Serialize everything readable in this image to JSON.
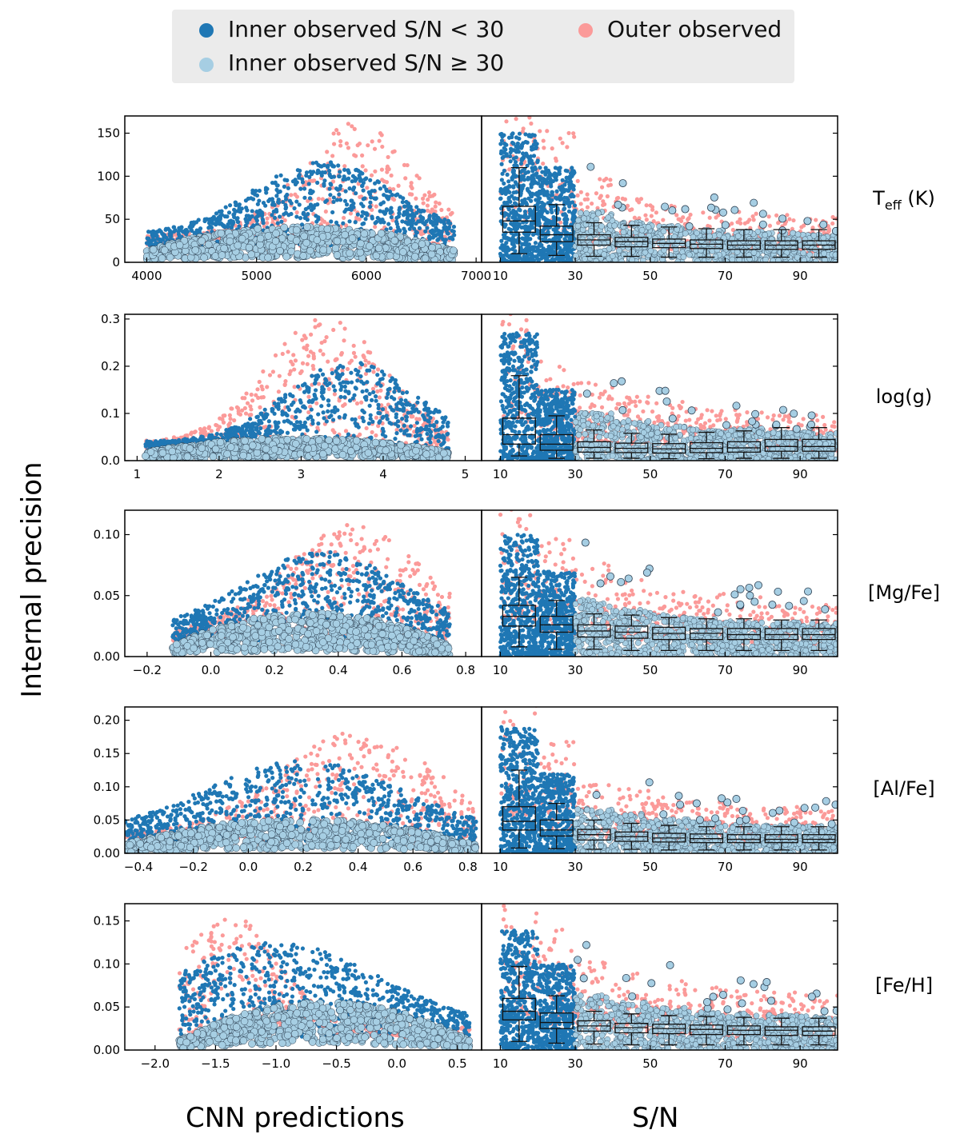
{
  "legend": {
    "items": [
      {
        "label": "Inner observed S/N < 30",
        "color": "#1f77b4"
      },
      {
        "label": "Inner observed S/N ≥ 30",
        "color": "#a6cee3"
      },
      {
        "label": "Outer observed",
        "color": "#fb9a99"
      }
    ]
  },
  "labels": {
    "ylabel": "Internal precision",
    "xlabel_left": "CNN predictions",
    "xlabel_right": "S/N"
  },
  "colors": {
    "inner_low": "#1f77b4",
    "inner_high": "#a6cee3",
    "outer": "#fb9a99"
  },
  "chart_data": [
    {
      "type": "scatter",
      "row_label": "T_eff (K)",
      "row_label_main": "T",
      "row_label_sub": "eff",
      "row_label_tail": " (K)",
      "ylim": [
        0,
        170
      ],
      "yticks": [
        0,
        50,
        100,
        150
      ],
      "ytick_labels": [
        "0",
        "50",
        "100",
        "150"
      ],
      "left": {
        "xlim": [
          3800,
          7050
        ],
        "xticks": [
          4000,
          5000,
          6000,
          7000
        ],
        "xtick_labels": [
          "4000",
          "5000",
          "6000",
          "7000"
        ],
        "low_center": 5600,
        "low_width": 900,
        "low_peak": 85,
        "high_base": 32,
        "high_amp": 18,
        "outer_center": 5900,
        "outer_width": 700,
        "outer_peak": 120,
        "x_min": 4000,
        "x_max": 6800
      },
      "right": {
        "xlim": [
          5,
          100
        ],
        "xticks": [
          10,
          30,
          50,
          70,
          90
        ],
        "xtick_labels": [
          "10",
          "30",
          "50",
          "70",
          "90"
        ],
        "box_medians": [
          48,
          32,
          26,
          24,
          22,
          21,
          20,
          20,
          20
        ],
        "box_q1": [
          35,
          24,
          20,
          18,
          17,
          16,
          15,
          15,
          15
        ],
        "box_q3": [
          65,
          42,
          32,
          29,
          27,
          26,
          25,
          25,
          25
        ],
        "box_lo": [
          10,
          8,
          7,
          7,
          6,
          6,
          6,
          6,
          6
        ],
        "box_hi": [
          110,
          67,
          46,
          43,
          41,
          39,
          38,
          38,
          38
        ],
        "scatter_top": [
          150,
          110,
          70,
          55,
          50,
          45,
          42,
          40,
          38
        ]
      }
    },
    {
      "type": "scatter",
      "row_label": "log(g)",
      "row_label_main": "log(g)",
      "row_label_sub": "",
      "row_label_tail": "",
      "ylim": [
        0,
        0.31
      ],
      "yticks": [
        0.0,
        0.1,
        0.2,
        0.3
      ],
      "ytick_labels": [
        "0.0",
        "0.1",
        "0.2",
        "0.3"
      ],
      "left": {
        "xlim": [
          0.85,
          5.2
        ],
        "xticks": [
          1,
          2,
          3,
          4,
          5
        ],
        "xtick_labels": [
          "1",
          "2",
          "3",
          "4",
          "5"
        ],
        "low_center": 3.6,
        "low_width": 1.1,
        "low_peak": 0.17,
        "high_base": 0.04,
        "high_amp": 0.02,
        "outer_center": 3.3,
        "outer_width": 1.0,
        "outer_peak": 0.24,
        "x_min": 1.1,
        "x_max": 4.8
      },
      "right": {
        "xlim": [
          5,
          100
        ],
        "xticks": [
          10,
          30,
          50,
          70,
          90
        ],
        "xtick_labels": [
          "10",
          "30",
          "50",
          "70",
          "90"
        ],
        "box_medians": [
          0.055,
          0.035,
          0.028,
          0.026,
          0.025,
          0.026,
          0.027,
          0.03,
          0.03
        ],
        "box_q1": [
          0.035,
          0.022,
          0.018,
          0.017,
          0.016,
          0.017,
          0.018,
          0.02,
          0.02
        ],
        "box_q3": [
          0.09,
          0.055,
          0.04,
          0.037,
          0.036,
          0.038,
          0.04,
          0.045,
          0.045
        ],
        "box_lo": [
          0.01,
          0.005,
          0.005,
          0.005,
          0.004,
          0.004,
          0.005,
          0.005,
          0.005
        ],
        "box_hi": [
          0.18,
          0.095,
          0.065,
          0.058,
          0.056,
          0.06,
          0.063,
          0.07,
          0.07
        ],
        "scatter_top": [
          0.27,
          0.15,
          0.12,
          0.1,
          0.09,
          0.08,
          0.08,
          0.07,
          0.07
        ]
      }
    },
    {
      "type": "scatter",
      "row_label": "[Mg/Fe]",
      "row_label_main": "[Mg/Fe]",
      "row_label_sub": "",
      "row_label_tail": "",
      "ylim": [
        0,
        0.12
      ],
      "yticks": [
        0.0,
        0.05,
        0.1
      ],
      "ytick_labels": [
        "0.00",
        "0.05",
        "0.10"
      ],
      "left": {
        "xlim": [
          -0.27,
          0.85
        ],
        "xticks": [
          -0.2,
          0.0,
          0.2,
          0.4,
          0.6,
          0.8
        ],
        "xtick_labels": [
          "−0.2",
          "0.0",
          "0.2",
          "0.4",
          "0.6",
          "0.8"
        ],
        "low_center": 0.35,
        "low_width": 0.35,
        "low_peak": 0.066,
        "high_base": 0.02,
        "high_amp": 0.018,
        "outer_center": 0.45,
        "outer_width": 0.3,
        "outer_peak": 0.08,
        "x_min": -0.12,
        "x_max": 0.75
      },
      "right": {
        "xlim": [
          5,
          100
        ],
        "xticks": [
          10,
          30,
          50,
          70,
          90
        ],
        "xtick_labels": [
          "10",
          "30",
          "50",
          "70",
          "90"
        ],
        "box_medians": [
          0.033,
          0.026,
          0.021,
          0.02,
          0.019,
          0.019,
          0.018,
          0.018,
          0.018
        ],
        "box_q1": [
          0.025,
          0.02,
          0.016,
          0.015,
          0.014,
          0.014,
          0.014,
          0.014,
          0.014
        ],
        "box_q3": [
          0.042,
          0.033,
          0.026,
          0.025,
          0.024,
          0.023,
          0.023,
          0.023,
          0.023
        ],
        "box_lo": [
          0.008,
          0.006,
          0.006,
          0.005,
          0.005,
          0.005,
          0.005,
          0.005,
          0.005
        ],
        "box_hi": [
          0.065,
          0.046,
          0.035,
          0.034,
          0.032,
          0.031,
          0.031,
          0.03,
          0.03
        ],
        "scatter_top": [
          0.1,
          0.07,
          0.055,
          0.045,
          0.04,
          0.037,
          0.035,
          0.033,
          0.032
        ]
      }
    },
    {
      "type": "scatter",
      "row_label": "[Al/Fe]",
      "row_label_main": "[Al/Fe]",
      "row_label_sub": "",
      "row_label_tail": "",
      "ylim": [
        0,
        0.22
      ],
      "yticks": [
        0.0,
        0.05,
        0.1,
        0.15,
        0.2
      ],
      "ytick_labels": [
        "0.00",
        "0.05",
        "0.10",
        "0.15",
        "0.20"
      ],
      "left": {
        "xlim": [
          -0.45,
          0.85
        ],
        "xticks": [
          -0.4,
          -0.2,
          0.0,
          0.2,
          0.4,
          0.6,
          0.8
        ],
        "xtick_labels": [
          "−0.4",
          "−0.2",
          "0.0",
          "0.2",
          "0.4",
          "0.6",
          "0.8"
        ],
        "low_center": 0.2,
        "low_width": 0.5,
        "low_peak": 0.11,
        "high_base": 0.03,
        "high_amp": 0.025,
        "outer_center": 0.4,
        "outer_width": 0.4,
        "outer_peak": 0.14,
        "x_min": -0.45,
        "x_max": 0.83
      },
      "right": {
        "xlim": [
          5,
          100
        ],
        "xticks": [
          10,
          30,
          50,
          70,
          90
        ],
        "xtick_labels": [
          "10",
          "30",
          "50",
          "70",
          "90"
        ],
        "box_medians": [
          0.048,
          0.035,
          0.028,
          0.025,
          0.023,
          0.022,
          0.021,
          0.021,
          0.021
        ],
        "box_q1": [
          0.035,
          0.026,
          0.02,
          0.018,
          0.017,
          0.016,
          0.016,
          0.016,
          0.016
        ],
        "box_q3": [
          0.07,
          0.05,
          0.036,
          0.032,
          0.03,
          0.029,
          0.028,
          0.028,
          0.028
        ],
        "box_lo": [
          0.008,
          0.007,
          0.006,
          0.006,
          0.005,
          0.005,
          0.005,
          0.005,
          0.005
        ],
        "box_hi": [
          0.125,
          0.075,
          0.05,
          0.045,
          0.042,
          0.04,
          0.04,
          0.04,
          0.04
        ],
        "scatter_top": [
          0.19,
          0.12,
          0.08,
          0.07,
          0.06,
          0.055,
          0.05,
          0.05,
          0.048
        ]
      }
    },
    {
      "type": "scatter",
      "row_label": "[Fe/H]",
      "row_label_main": "[Fe/H]",
      "row_label_sub": "",
      "row_label_tail": "",
      "ylim": [
        0,
        0.17
      ],
      "yticks": [
        0.0,
        0.05,
        0.1,
        0.15
      ],
      "ytick_labels": [
        "0.00",
        "0.05",
        "0.10",
        "0.15"
      ],
      "left": {
        "xlim": [
          -2.25,
          0.7
        ],
        "xticks": [
          -2.0,
          -1.5,
          -1.0,
          -0.5,
          0.0,
          0.5
        ],
        "xtick_labels": [
          "−2.0",
          "−1.5",
          "−1.0",
          "−0.5",
          "0.0",
          "0.5"
        ],
        "low_center": -1.0,
        "low_width": 1.2,
        "low_peak": 0.1,
        "high_base": 0.025,
        "high_amp": 0.03,
        "outer_center": -1.4,
        "outer_width": 0.6,
        "outer_peak": 0.12,
        "x_min": -1.8,
        "x_max": 0.6
      },
      "right": {
        "xlim": [
          5,
          100
        ],
        "xticks": [
          10,
          30,
          50,
          70,
          90
        ],
        "xtick_labels": [
          "10",
          "30",
          "50",
          "70",
          "90"
        ],
        "box_medians": [
          0.045,
          0.032,
          0.028,
          0.026,
          0.025,
          0.024,
          0.023,
          0.023,
          0.022
        ],
        "box_q1": [
          0.035,
          0.025,
          0.022,
          0.02,
          0.019,
          0.018,
          0.018,
          0.017,
          0.017
        ],
        "box_q3": [
          0.06,
          0.043,
          0.034,
          0.031,
          0.03,
          0.029,
          0.028,
          0.027,
          0.027
        ],
        "box_lo": [
          0.01,
          0.008,
          0.007,
          0.006,
          0.006,
          0.006,
          0.006,
          0.006,
          0.006
        ],
        "box_hi": [
          0.097,
          0.063,
          0.045,
          0.042,
          0.04,
          0.039,
          0.038,
          0.037,
          0.037
        ],
        "scatter_top": [
          0.14,
          0.1,
          0.075,
          0.065,
          0.058,
          0.052,
          0.05,
          0.048,
          0.046
        ]
      }
    }
  ]
}
